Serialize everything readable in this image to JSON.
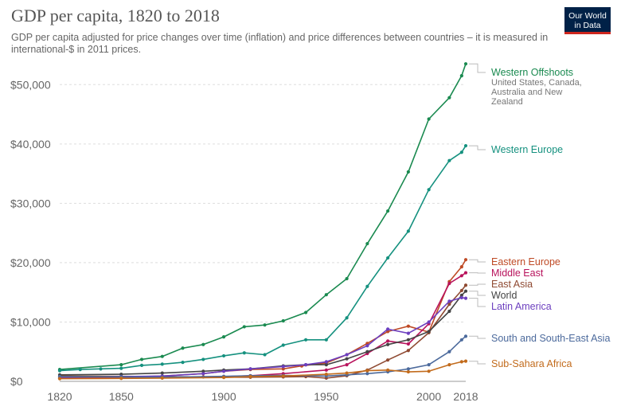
{
  "title": "GDP per capita, 1820 to 2018",
  "subtitle": "GDP per capita adjusted for price changes over time (inflation) and price differences between countries – it is measured in international-$ in 2011 prices.",
  "logo": {
    "line1": "Our World",
    "line2": "in Data"
  },
  "chart_data": {
    "type": "line",
    "title": "GDP per capita, 1820 to 2018",
    "xlim": [
      1820,
      2018
    ],
    "ylim": [
      0,
      55000
    ],
    "x_ticks": [
      1820,
      1850,
      1900,
      1950,
      2000,
      2018
    ],
    "y_ticks": [
      {
        "value": 0,
        "label": "$0"
      },
      {
        "value": 10000,
        "label": "$10,000"
      },
      {
        "value": 20000,
        "label": "$20,000"
      },
      {
        "value": 30000,
        "label": "$30,000"
      },
      {
        "value": 40000,
        "label": "$40,000"
      },
      {
        "value": 50000,
        "label": "$50,000"
      }
    ],
    "grid": "horizontal dashed",
    "series": [
      {
        "name": "Western Offshoots",
        "note": [
          "United States, Canada,",
          "Australia and New",
          "Zealand"
        ],
        "color": "#1a8a50",
        "points": [
          [
            1820,
            2000
          ],
          [
            1850,
            2800
          ],
          [
            1860,
            3700
          ],
          [
            1870,
            4200
          ],
          [
            1880,
            5600
          ],
          [
            1890,
            6200
          ],
          [
            1900,
            7500
          ],
          [
            1910,
            9200
          ],
          [
            1920,
            9500
          ],
          [
            1929,
            10200
          ],
          [
            1940,
            11600
          ],
          [
            1950,
            14600
          ],
          [
            1960,
            17300
          ],
          [
            1970,
            23200
          ],
          [
            1980,
            28700
          ],
          [
            1990,
            35300
          ],
          [
            2000,
            44200
          ],
          [
            2010,
            47800
          ],
          [
            2016,
            51500
          ],
          [
            2018,
            53500
          ]
        ]
      },
      {
        "name": "Western Europe",
        "color": "#15917f",
        "points": [
          [
            1820,
            1800
          ],
          [
            1830,
            2000
          ],
          [
            1840,
            2100
          ],
          [
            1850,
            2200
          ],
          [
            1860,
            2700
          ],
          [
            1870,
            2900
          ],
          [
            1880,
            3200
          ],
          [
            1890,
            3700
          ],
          [
            1900,
            4300
          ],
          [
            1910,
            4800
          ],
          [
            1920,
            4500
          ],
          [
            1929,
            6100
          ],
          [
            1940,
            7000
          ],
          [
            1950,
            7000
          ],
          [
            1960,
            10700
          ],
          [
            1970,
            16000
          ],
          [
            1980,
            20800
          ],
          [
            1990,
            25300
          ],
          [
            2000,
            32300
          ],
          [
            2010,
            37200
          ],
          [
            2016,
            38600
          ],
          [
            2018,
            39700
          ]
        ]
      },
      {
        "name": "Eastern Europe",
        "color": "#bf4a25",
        "points": [
          [
            1820,
            600
          ],
          [
            1850,
            700
          ],
          [
            1870,
            900
          ],
          [
            1890,
            1300
          ],
          [
            1900,
            1700
          ],
          [
            1913,
            2000
          ],
          [
            1929,
            2100
          ],
          [
            1938,
            2600
          ],
          [
            1950,
            3100
          ],
          [
            1960,
            4500
          ],
          [
            1970,
            6400
          ],
          [
            1980,
            8400
          ],
          [
            1990,
            9300
          ],
          [
            2000,
            8300
          ],
          [
            2010,
            16800
          ],
          [
            2016,
            19300
          ],
          [
            2018,
            20500
          ]
        ]
      },
      {
        "name": "Middle East",
        "color": "#b8135c",
        "points": [
          [
            1820,
            500
          ],
          [
            1850,
            550
          ],
          [
            1870,
            650
          ],
          [
            1900,
            800
          ],
          [
            1913,
            950
          ],
          [
            1929,
            1300
          ],
          [
            1950,
            1900
          ],
          [
            1960,
            2800
          ],
          [
            1970,
            4700
          ],
          [
            1980,
            6800
          ],
          [
            1990,
            6300
          ],
          [
            2000,
            9700
          ],
          [
            2010,
            16500
          ],
          [
            2016,
            17800
          ],
          [
            2018,
            18300
          ]
        ]
      },
      {
        "name": "East Asia",
        "color": "#8f4a32",
        "points": [
          [
            1820,
            900
          ],
          [
            1850,
            850
          ],
          [
            1870,
            800
          ],
          [
            1890,
            750
          ],
          [
            1900,
            700
          ],
          [
            1913,
            700
          ],
          [
            1929,
            750
          ],
          [
            1940,
            800
          ],
          [
            1950,
            550
          ],
          [
            1960,
            950
          ],
          [
            1970,
            1900
          ],
          [
            1980,
            3600
          ],
          [
            1990,
            5200
          ],
          [
            2000,
            8200
          ],
          [
            2010,
            13000
          ],
          [
            2016,
            15300
          ],
          [
            2018,
            16200
          ]
        ]
      },
      {
        "name": "World",
        "color": "#444444",
        "points": [
          [
            1820,
            1100
          ],
          [
            1850,
            1200
          ],
          [
            1870,
            1400
          ],
          [
            1890,
            1700
          ],
          [
            1900,
            1900
          ],
          [
            1913,
            2100
          ],
          [
            1929,
            2600
          ],
          [
            1940,
            2800
          ],
          [
            1950,
            2800
          ],
          [
            1960,
            3800
          ],
          [
            1970,
            5000
          ],
          [
            1980,
            6200
          ],
          [
            1990,
            7000
          ],
          [
            2000,
            8400
          ],
          [
            2010,
            11800
          ],
          [
            2016,
            14500
          ],
          [
            2018,
            15200
          ]
        ]
      },
      {
        "name": "Latin America",
        "color": "#6c3fbf",
        "points": [
          [
            1820,
            700
          ],
          [
            1850,
            800
          ],
          [
            1870,
            900
          ],
          [
            1890,
            1300
          ],
          [
            1900,
            1700
          ],
          [
            1913,
            2100
          ],
          [
            1929,
            2500
          ],
          [
            1940,
            2800
          ],
          [
            1950,
            3300
          ],
          [
            1960,
            4500
          ],
          [
            1970,
            6000
          ],
          [
            1980,
            8800
          ],
          [
            1990,
            8100
          ],
          [
            2000,
            10000
          ],
          [
            2010,
            13500
          ],
          [
            2016,
            14100
          ],
          [
            2018,
            14000
          ]
        ]
      },
      {
        "name": "South and South-East Asia",
        "color": "#4c6a9c",
        "points": [
          [
            1820,
            800
          ],
          [
            1850,
            750
          ],
          [
            1870,
            700
          ],
          [
            1900,
            850
          ],
          [
            1913,
            950
          ],
          [
            1929,
            1000
          ],
          [
            1950,
            900
          ],
          [
            1960,
            1100
          ],
          [
            1970,
            1300
          ],
          [
            1980,
            1600
          ],
          [
            1990,
            2100
          ],
          [
            2000,
            2800
          ],
          [
            2010,
            5000
          ],
          [
            2016,
            7000
          ],
          [
            2018,
            7600
          ]
        ]
      },
      {
        "name": "Sub-Sahara Africa",
        "color": "#c26b1c",
        "points": [
          [
            1820,
            450
          ],
          [
            1850,
            500
          ],
          [
            1870,
            550
          ],
          [
            1900,
            650
          ],
          [
            1913,
            800
          ],
          [
            1929,
            900
          ],
          [
            1950,
            1200
          ],
          [
            1960,
            1400
          ],
          [
            1970,
            1800
          ],
          [
            1980,
            1900
          ],
          [
            1990,
            1600
          ],
          [
            2000,
            1700
          ],
          [
            2010,
            2800
          ],
          [
            2016,
            3300
          ],
          [
            2018,
            3400
          ]
        ]
      }
    ]
  }
}
